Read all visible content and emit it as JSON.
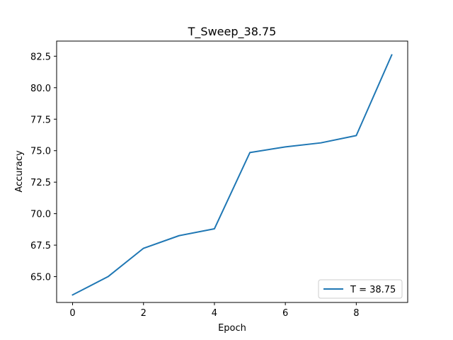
{
  "chart_data": {
    "type": "line",
    "title": "T_Sweep_38.75",
    "xlabel": "Epoch",
    "ylabel": "Accuracy",
    "xlim": [
      -0.45,
      9.45
    ],
    "ylim": [
      62.95,
      83.7
    ],
    "xticks": [
      0,
      2,
      4,
      6,
      8
    ],
    "xtick_labels": [
      "0",
      "2",
      "4",
      "6",
      "8"
    ],
    "yticks": [
      65.0,
      67.5,
      70.0,
      72.5,
      75.0,
      77.5,
      80.0,
      82.5
    ],
    "ytick_labels": [
      "65.0",
      "67.5",
      "70.0",
      "72.5",
      "75.0",
      "77.5",
      "80.0",
      "82.5"
    ],
    "grid": false,
    "legend_position": "lower-right",
    "series": [
      {
        "name": "T = 38.75",
        "color": "#1f77b4",
        "x": [
          0,
          1,
          2,
          3,
          4,
          5,
          6,
          7,
          8,
          9
        ],
        "y": [
          63.55,
          65.0,
          67.25,
          68.25,
          68.8,
          74.85,
          75.3,
          75.62,
          76.2,
          82.6
        ]
      }
    ]
  }
}
